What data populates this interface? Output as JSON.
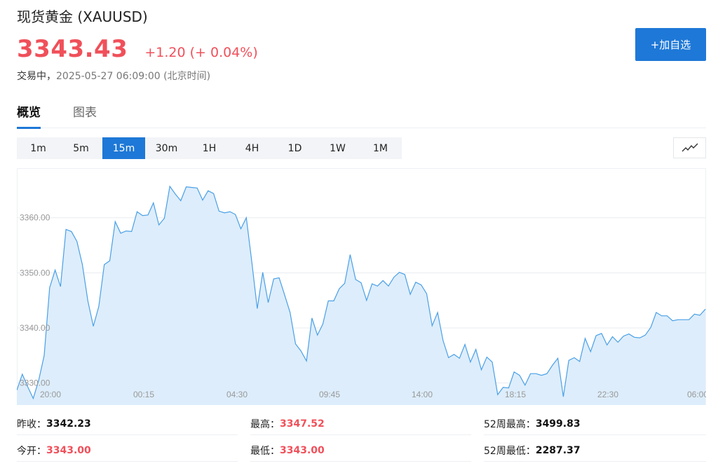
{
  "header": {
    "title": "现货黄金 (XAUUSD)",
    "price": "3343.43",
    "change": "+1.20 (+ 0.04%)",
    "status_label": "交易中，",
    "timestamp": "2025-05-27 06:09:00 (北京时间)",
    "add_button": "+加自选"
  },
  "tabs": [
    {
      "label": "概览",
      "active": true
    },
    {
      "label": "图表",
      "active": false
    }
  ],
  "periods": [
    {
      "label": "1m",
      "active": false
    },
    {
      "label": "5m",
      "active": false
    },
    {
      "label": "15m",
      "active": true
    },
    {
      "label": "30m",
      "active": false
    },
    {
      "label": "1H",
      "active": false
    },
    {
      "label": "4H",
      "active": false
    },
    {
      "label": "1D",
      "active": false
    },
    {
      "label": "1W",
      "active": false
    },
    {
      "label": "1M",
      "active": false
    }
  ],
  "chart_type_icon": "line-chart-icon",
  "colors": {
    "accent": "#1e78d7",
    "up": "#f0505a",
    "line": "#4aa0e6",
    "fill": "#ddedfb"
  },
  "chart_data": {
    "type": "area",
    "ylim": [
      3326,
      3369
    ],
    "y_ticks": [
      "3330.00",
      "3340.00",
      "3350.00",
      "3360.00"
    ],
    "x_ticks": [
      "20:00",
      "00:15",
      "04:30",
      "09:45",
      "14:00",
      "18:15",
      "22:30",
      "06:00"
    ],
    "values": [
      3328.7,
      3331.6,
      3329.3,
      3327.2,
      3330.5,
      3335.0,
      3347.3,
      3350.5,
      3347.5,
      3357.9,
      3357.5,
      3355.7,
      3351.5,
      3344.9,
      3340.3,
      3343.9,
      3351.5,
      3352.2,
      3359.3,
      3357.2,
      3357.6,
      3357.5,
      3361.1,
      3360.4,
      3360.5,
      3362.7,
      3358.7,
      3359.9,
      3365.7,
      3364.3,
      3363.1,
      3365.6,
      3365.5,
      3365.4,
      3363.2,
      3364.9,
      3364.4,
      3361.2,
      3360.9,
      3361.1,
      3360.6,
      3358.0,
      3360.0,
      3352.0,
      3343.5,
      3350.1,
      3344.6,
      3348.9,
      3349.1,
      3346.0,
      3342.8,
      3337.1,
      3335.8,
      3334.0,
      3341.8,
      3338.7,
      3340.7,
      3344.9,
      3344.9,
      3347.1,
      3348.1,
      3353.3,
      3348.8,
      3348.2,
      3345.0,
      3348.0,
      3347.6,
      3348.6,
      3347.6,
      3349.2,
      3350.1,
      3349.7,
      3346.1,
      3348.3,
      3347.8,
      3346.2,
      3340.4,
      3342.8,
      3337.7,
      3334.6,
      3335.2,
      3334.5,
      3337.0,
      3333.8,
      3336.1,
      3332.4,
      3334.7,
      3333.8,
      3327.9,
      3329.2,
      3329.1,
      3332.0,
      3331.4,
      3329.6,
      3331.7,
      3331.7,
      3331.4,
      3331.7,
      3333.2,
      3334.5,
      3327.5,
      3334.1,
      3334.6,
      3333.9,
      3338.1,
      3335.7,
      3338.6,
      3339.0,
      3336.9,
      3338.4,
      3337.4,
      3338.5,
      3338.9,
      3338.3,
      3338.2,
      3338.7,
      3340.1,
      3342.8,
      3342.2,
      3342.2,
      3341.3,
      3341.5,
      3341.5,
      3341.5,
      3342.5,
      3342.3,
      3343.4
    ]
  },
  "stats": [
    [
      {
        "label": "昨收：",
        "value": "3342.23",
        "up": false
      },
      {
        "label": "最高：",
        "value": "3347.52",
        "up": true
      },
      {
        "label": "52周最高：",
        "value": "3499.83",
        "up": false
      }
    ],
    [
      {
        "label": "今开：",
        "value": "3343.00",
        "up": true
      },
      {
        "label": "最低：",
        "value": "3343.00",
        "up": true
      },
      {
        "label": "52周最低：",
        "value": "2287.37",
        "up": false
      }
    ]
  ]
}
